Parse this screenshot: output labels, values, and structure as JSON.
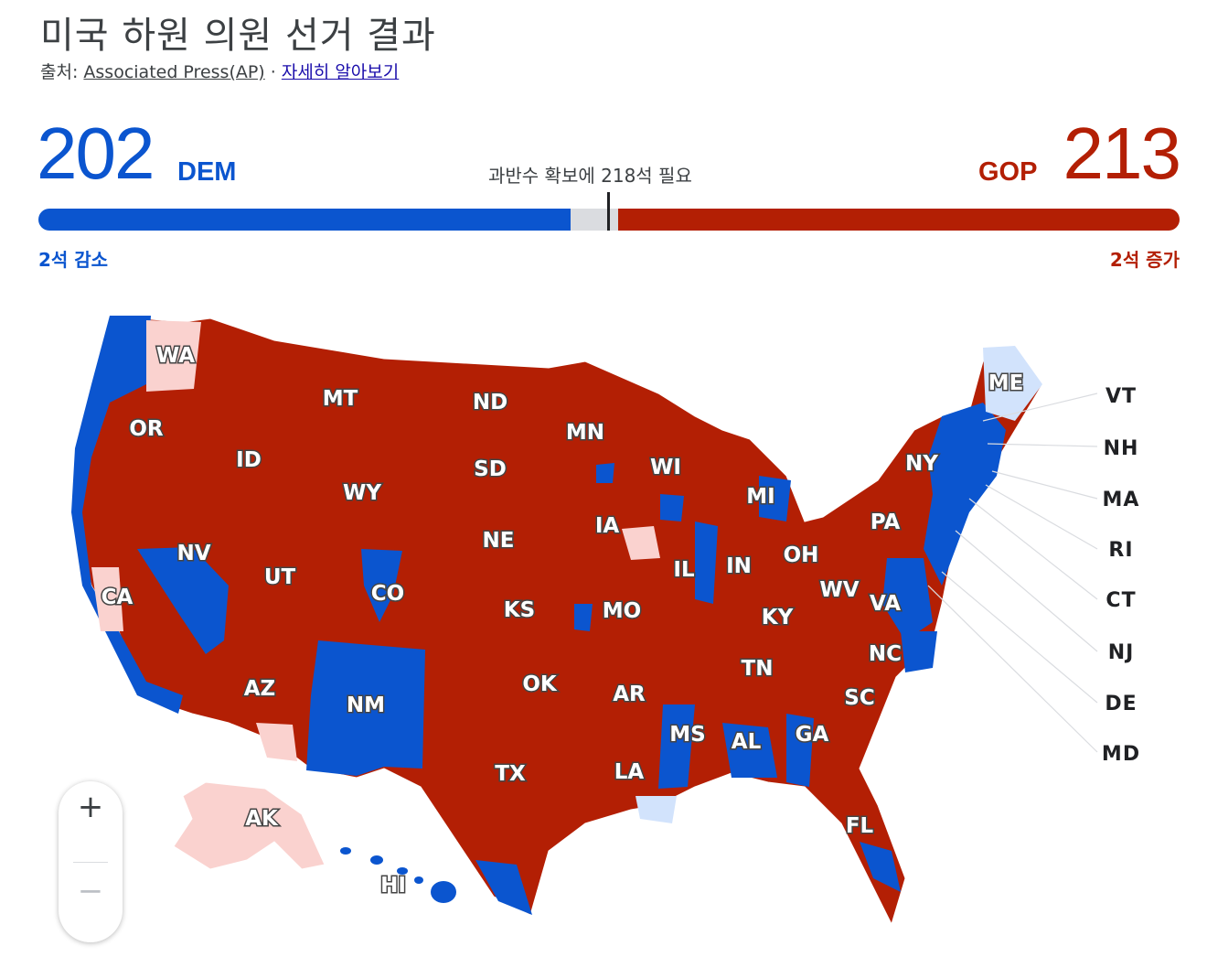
{
  "header": {
    "title": "미국 하원 의원 선거 결과",
    "source_prefix": "출처: ",
    "source_link": "Associated Press(AP)",
    "separator": " · ",
    "learn_more": "자세히 알아보기"
  },
  "tally": {
    "dem_count": "202",
    "dem_label": "DEM",
    "gop_label": "GOP",
    "gop_count": "213",
    "majority_text": "과반수 확보에 218석 필요",
    "dem_change": "2석 감소",
    "gop_change": "2석 증가",
    "total_seats": 435,
    "dem_seats": 202,
    "gop_seats": 213,
    "undecided_seats": 20
  },
  "colors": {
    "dem": "#0b55cf",
    "gop": "#b31f04",
    "undecided": "#dadce0",
    "dem_light": "#d2e3fc",
    "gop_light": "#fad2cf"
  },
  "map": {
    "states": [
      "WA",
      "OR",
      "CA",
      "NV",
      "ID",
      "MT",
      "WY",
      "UT",
      "AZ",
      "CO",
      "NM",
      "ND",
      "SD",
      "NE",
      "KS",
      "OK",
      "TX",
      "MN",
      "IA",
      "MO",
      "AR",
      "LA",
      "WI",
      "IL",
      "MS",
      "AL",
      "MI",
      "IN",
      "OH",
      "KY",
      "TN",
      "GA",
      "FL",
      "SC",
      "NC",
      "VA",
      "WV",
      "PA",
      "NY",
      "ME",
      "AK",
      "HI"
    ],
    "callout_states": [
      "VT",
      "NH",
      "MA",
      "RI",
      "CT",
      "NJ",
      "DE",
      "MD"
    ]
  },
  "zoom": {
    "zoom_in": "+",
    "zoom_out": "−"
  }
}
